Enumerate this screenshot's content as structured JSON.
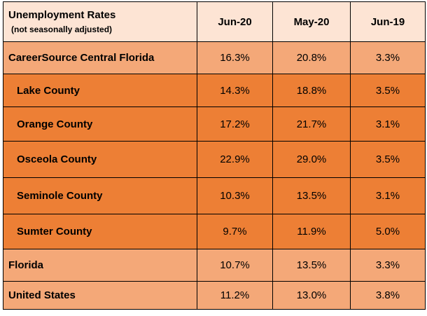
{
  "header": {
    "title": "Unemployment Rates",
    "subtitle": "(not seasonally adjusted)",
    "columns": [
      "Jun-20",
      "May-20",
      "Jun-19"
    ]
  },
  "rows": [
    {
      "name": "CareerSource Central Florida",
      "values": [
        "16.3%",
        "20.8%",
        "3.3%"
      ]
    },
    {
      "name": "Lake County",
      "values": [
        "14.3%",
        "18.8%",
        "3.5%"
      ]
    },
    {
      "name": "Orange County",
      "values": [
        "17.2%",
        "21.7%",
        "3.1%"
      ]
    },
    {
      "name": "Osceola County",
      "values": [
        "22.9%",
        "29.0%",
        "3.5%"
      ]
    },
    {
      "name": "Seminole County",
      "values": [
        "10.3%",
        "13.5%",
        "3.1%"
      ]
    },
    {
      "name": "Sumter County",
      "values": [
        "9.7%",
        "11.9%",
        "5.0%"
      ]
    },
    {
      "name": "Florida",
      "values": [
        "10.7%",
        "13.5%",
        "3.3%"
      ]
    },
    {
      "name": "United States",
      "values": [
        "11.2%",
        "13.0%",
        "3.8%"
      ]
    }
  ],
  "colors": {
    "header_bg": "#fde4d4",
    "light_row_bg": "#f4a878",
    "dark_row_bg": "#ed7f35"
  }
}
